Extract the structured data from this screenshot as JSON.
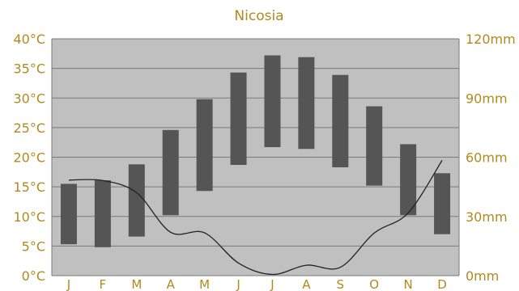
{
  "chart_data": {
    "type": "bar",
    "title": "Nicosia",
    "categories": [
      "J",
      "F",
      "M",
      "A",
      "M",
      "J",
      "J",
      "A",
      "S",
      "O",
      "N",
      "D"
    ],
    "temperature_range": {
      "low": [
        5.3,
        4.8,
        6.6,
        10.2,
        14.3,
        18.7,
        21.7,
        21.4,
        18.3,
        15.2,
        10.2,
        7.0
      ],
      "high": [
        15.5,
        16.1,
        18.8,
        24.6,
        29.8,
        34.3,
        37.2,
        36.9,
        33.9,
        28.6,
        22.2,
        17.3
      ],
      "unit": "°C"
    },
    "precipitation": {
      "values": [
        48.4,
        48.2,
        42.0,
        22.0,
        21.7,
        6.4,
        0.6,
        5.3,
        4.2,
        21.6,
        31.8,
        58.4
      ],
      "unit": "mm"
    },
    "y_left": {
      "ylim": [
        0,
        40
      ],
      "ticks": [
        "0°C",
        "5°C",
        "10°C",
        "15°C",
        "20°C",
        "25°C",
        "30°C",
        "35°C",
        "40°C"
      ]
    },
    "y_right": {
      "ylim": [
        0,
        120
      ],
      "ticks": [
        "0mm",
        "30mm",
        "60mm",
        "90mm",
        "120mm"
      ]
    },
    "grid": true,
    "colors": {
      "plot_background": "#c0c0c0",
      "bar": "#555555",
      "line": "#222222",
      "gridline": "#7a7a7a",
      "text": "#b08a1e"
    }
  }
}
